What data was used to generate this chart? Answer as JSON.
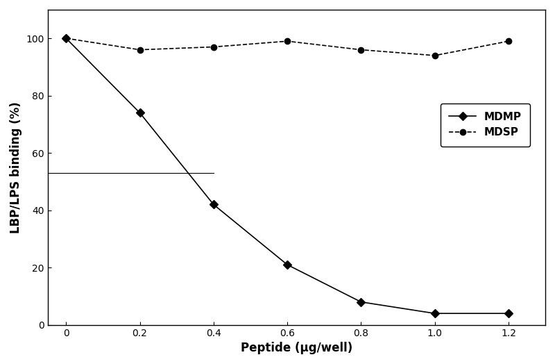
{
  "mdmp_x": [
    0,
    0.2,
    0.4,
    0.6,
    0.8,
    1.0,
    1.2
  ],
  "mdmp_y": [
    100,
    74,
    42,
    21,
    8,
    4,
    4
  ],
  "mdsp_x": [
    0,
    0.2,
    0.4,
    0.6,
    0.8,
    1.0,
    1.2
  ],
  "mdsp_y": [
    100,
    96,
    97,
    99,
    96,
    94,
    99
  ],
  "xlabel": "Peptide (μg/well)",
  "ylabel": "LBP/LPS binding (%)",
  "xlim": [
    -0.05,
    1.3
  ],
  "ylim": [
    0,
    110
  ],
  "xticks": [
    0,
    0.2,
    0.4,
    0.6,
    0.8,
    1.0,
    1.2
  ],
  "yticks": [
    0,
    20,
    40,
    60,
    80,
    100
  ],
  "mdmp_label": "MDMP",
  "mdsp_label": "MDSP",
  "hline_y": 53,
  "hline_x_end": 0.4,
  "line_color": "#000000",
  "mdmp_marker": "D",
  "mdsp_marker": "o",
  "marker_size": 6,
  "legend_fontsize": 11,
  "axis_label_fontsize": 12,
  "tick_fontsize": 10,
  "figsize": [
    8.0,
    5.24
  ],
  "dpi": 100
}
